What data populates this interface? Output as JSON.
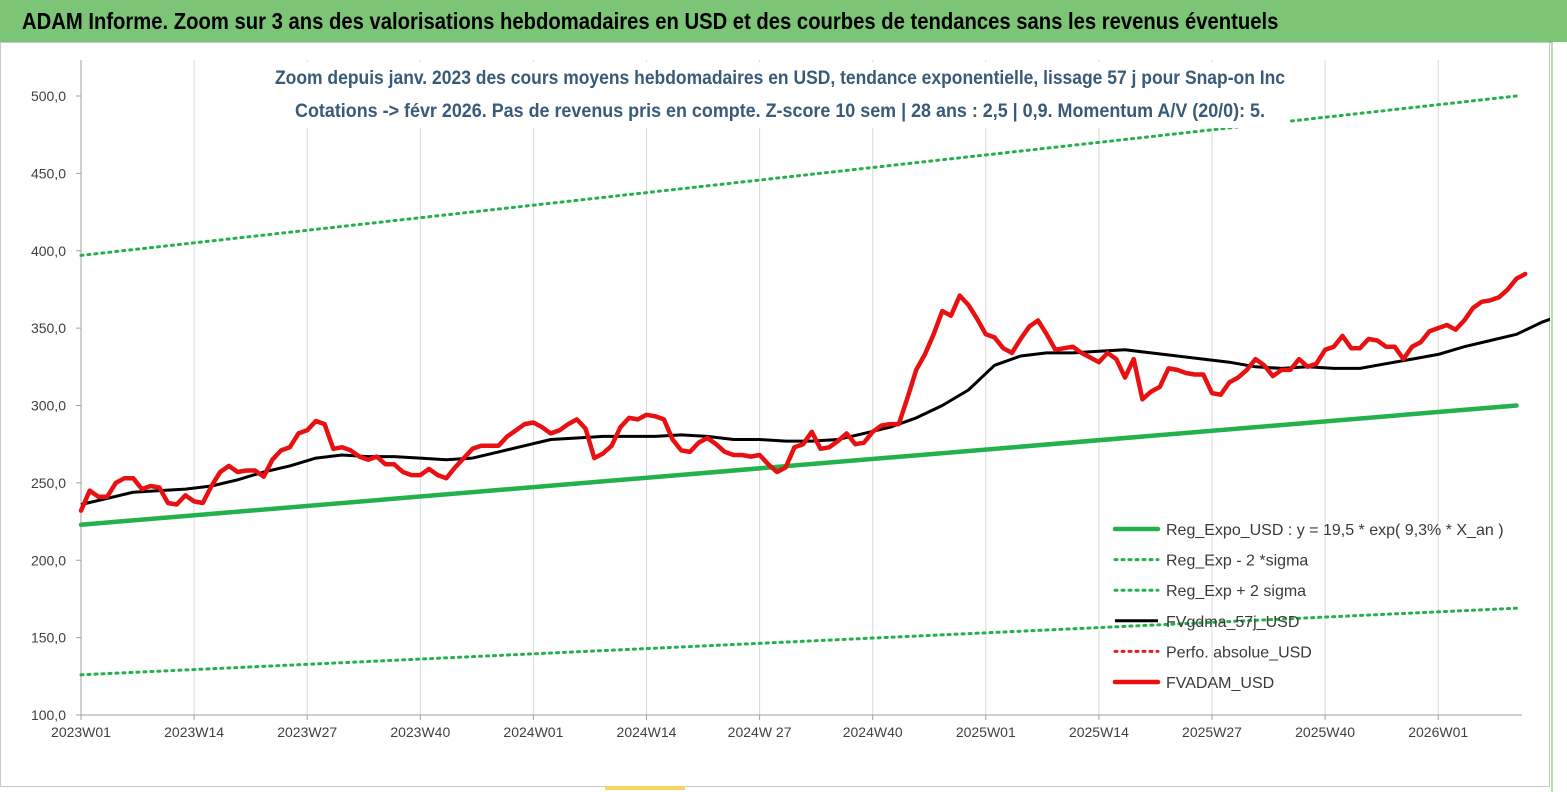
{
  "header": {
    "title": "ADAM Informe. Zoom sur 3 ans des valorisations hebdomadaires en USD et des courbes de tendances sans les revenus éventuels"
  },
  "colors": {
    "header_bg": "#7cc576",
    "reg_expo": "#22b14c",
    "sigma": "#22b14c",
    "fvgdma": "#000000",
    "perfo": "#e02020",
    "fvadam": "#e81010"
  },
  "chart_data": {
    "type": "line",
    "title_line1": "Zoom depuis janv. 2023 des cours moyens hebdomadaires en USD, tendance exponentielle, lissage 57 j pour Snap-on Inc",
    "title_line2": "Cotations -> févr 2026. Pas de revenus pris en compte. Z-score 10 sem | 28 ans : 2,5 | 0,9. Momentum A/V (20/0): 5.",
    "x_ticks": [
      "2023W01",
      "2023W14",
      "2023W27",
      "2023W40",
      "2024W01",
      "2024W14",
      "2024W 27",
      "2024W40",
      "2025W01",
      "2025W14",
      "2025W27",
      "2025W40",
      "2026W01"
    ],
    "y_ticks": [
      "100,0",
      "150,0",
      "200,0",
      "250,0",
      "300,0",
      "350,0",
      "400,0",
      "450,0",
      "500,0"
    ],
    "ylim": [
      100,
      500
    ],
    "x_range_weeks": [
      0,
      165
    ],
    "grid_vertical": true,
    "grid_horizontal": false,
    "legend_position": "right",
    "series": [
      {
        "name": "Reg_Expo_USD : y = 19,5 * exp( 9,3% *  X_an )",
        "style": "solid-thick",
        "color": "#22b14c",
        "points": [
          [
            0,
            223
          ],
          [
            165,
            300
          ]
        ]
      },
      {
        "name": "Reg_Exp - 2 *sigma",
        "style": "dotted",
        "color": "#22b14c",
        "points": [
          [
            0,
            126
          ],
          [
            165,
            169
          ]
        ]
      },
      {
        "name": "Reg_Exp + 2 sigma",
        "style": "dotted",
        "color": "#22b14c",
        "points": [
          [
            0,
            397
          ],
          [
            165,
            500
          ]
        ]
      },
      {
        "name": "FVgdma_57j_USD",
        "style": "solid",
        "color": "#000000",
        "points": [
          [
            0,
            236
          ],
          [
            3,
            240
          ],
          [
            6,
            244
          ],
          [
            9,
            245
          ],
          [
            12,
            246
          ],
          [
            15,
            248
          ],
          [
            18,
            252
          ],
          [
            21,
            257
          ],
          [
            24,
            261
          ],
          [
            27,
            266
          ],
          [
            30,
            268
          ],
          [
            33,
            267
          ],
          [
            36,
            267
          ],
          [
            39,
            266
          ],
          [
            42,
            265
          ],
          [
            45,
            266
          ],
          [
            48,
            270
          ],
          [
            51,
            274
          ],
          [
            54,
            278
          ],
          [
            57,
            279
          ],
          [
            60,
            280
          ],
          [
            63,
            280
          ],
          [
            66,
            280
          ],
          [
            69,
            281
          ],
          [
            72,
            280
          ],
          [
            75,
            278
          ],
          [
            78,
            278
          ],
          [
            81,
            277
          ],
          [
            84,
            277
          ],
          [
            87,
            278
          ],
          [
            90,
            282
          ],
          [
            93,
            286
          ],
          [
            96,
            292
          ],
          [
            99,
            300
          ],
          [
            102,
            310
          ],
          [
            105,
            326
          ],
          [
            108,
            332
          ],
          [
            111,
            334
          ],
          [
            114,
            334
          ],
          [
            117,
            335
          ],
          [
            120,
            336
          ],
          [
            123,
            334
          ],
          [
            126,
            332
          ],
          [
            129,
            330
          ],
          [
            132,
            328
          ],
          [
            135,
            325
          ],
          [
            138,
            324
          ],
          [
            141,
            325
          ],
          [
            144,
            324
          ],
          [
            147,
            324
          ],
          [
            150,
            327
          ],
          [
            153,
            330
          ],
          [
            156,
            333
          ],
          [
            159,
            338
          ],
          [
            162,
            342
          ],
          [
            165,
            346
          ],
          [
            168,
            354
          ],
          [
            171,
            360
          ],
          [
            174,
            367
          ],
          [
            177,
            373
          ]
        ]
      },
      {
        "name": "Perfo. absolue_USD",
        "style": "dotted",
        "color": "#e02020",
        "points": []
      },
      {
        "name": "FVADAM_USD",
        "style": "solid-thick",
        "color": "#e81010",
        "points": [
          [
            0,
            232
          ],
          [
            1,
            245
          ],
          [
            2,
            241
          ],
          [
            3,
            241
          ],
          [
            4,
            250
          ],
          [
            5,
            253
          ],
          [
            6,
            253
          ],
          [
            7,
            246
          ],
          [
            8,
            248
          ],
          [
            9,
            247
          ],
          [
            10,
            237
          ],
          [
            11,
            236
          ],
          [
            12,
            242
          ],
          [
            13,
            238
          ],
          [
            14,
            237
          ],
          [
            15,
            248
          ],
          [
            16,
            257
          ],
          [
            17,
            261
          ],
          [
            18,
            257
          ],
          [
            19,
            258
          ],
          [
            20,
            258
          ],
          [
            21,
            254
          ],
          [
            22,
            265
          ],
          [
            23,
            271
          ],
          [
            24,
            273
          ],
          [
            25,
            282
          ],
          [
            26,
            284
          ],
          [
            27,
            290
          ],
          [
            28,
            288
          ],
          [
            29,
            272
          ],
          [
            30,
            273
          ],
          [
            31,
            271
          ],
          [
            32,
            267
          ],
          [
            33,
            265
          ],
          [
            34,
            267
          ],
          [
            35,
            262
          ],
          [
            36,
            262
          ],
          [
            37,
            257
          ],
          [
            38,
            255
          ],
          [
            39,
            255
          ],
          [
            40,
            259
          ],
          [
            41,
            255
          ],
          [
            42,
            253
          ],
          [
            43,
            260
          ],
          [
            44,
            266
          ],
          [
            45,
            272
          ],
          [
            46,
            274
          ],
          [
            47,
            274
          ],
          [
            48,
            274
          ],
          [
            49,
            280
          ],
          [
            50,
            284
          ],
          [
            51,
            288
          ],
          [
            52,
            289
          ],
          [
            53,
            286
          ],
          [
            54,
            282
          ],
          [
            55,
            284
          ],
          [
            56,
            288
          ],
          [
            57,
            291
          ],
          [
            58,
            285
          ],
          [
            59,
            266
          ],
          [
            60,
            269
          ],
          [
            61,
            274
          ],
          [
            62,
            286
          ],
          [
            63,
            292
          ],
          [
            64,
            291
          ],
          [
            65,
            294
          ],
          [
            66,
            293
          ],
          [
            67,
            291
          ],
          [
            68,
            278
          ],
          [
            69,
            271
          ],
          [
            70,
            270
          ],
          [
            71,
            276
          ],
          [
            72,
            279
          ],
          [
            73,
            275
          ],
          [
            74,
            270
          ],
          [
            75,
            268
          ],
          [
            76,
            268
          ],
          [
            77,
            267
          ],
          [
            78,
            268
          ],
          [
            79,
            262
          ],
          [
            80,
            257
          ],
          [
            81,
            260
          ],
          [
            82,
            273
          ],
          [
            83,
            275
          ],
          [
            84,
            283
          ],
          [
            85,
            272
          ],
          [
            86,
            273
          ],
          [
            87,
            277
          ],
          [
            88,
            282
          ],
          [
            89,
            275
          ],
          [
            90,
            276
          ],
          [
            91,
            283
          ],
          [
            92,
            287
          ],
          [
            93,
            288
          ],
          [
            94,
            288
          ],
          [
            95,
            305
          ],
          [
            96,
            323
          ],
          [
            97,
            333
          ],
          [
            98,
            346
          ],
          [
            99,
            361
          ],
          [
            100,
            358
          ],
          [
            101,
            371
          ],
          [
            102,
            365
          ],
          [
            103,
            356
          ],
          [
            104,
            346
          ],
          [
            105,
            344
          ],
          [
            106,
            337
          ],
          [
            107,
            334
          ],
          [
            108,
            343
          ],
          [
            109,
            351
          ],
          [
            110,
            355
          ],
          [
            111,
            346
          ],
          [
            112,
            336
          ],
          [
            113,
            337
          ],
          [
            114,
            338
          ],
          [
            115,
            334
          ],
          [
            116,
            331
          ],
          [
            117,
            328
          ],
          [
            118,
            334
          ],
          [
            119,
            330
          ],
          [
            120,
            318
          ],
          [
            121,
            330
          ],
          [
            122,
            304
          ],
          [
            123,
            309
          ],
          [
            124,
            312
          ],
          [
            125,
            324
          ],
          [
            126,
            323
          ],
          [
            127,
            321
          ],
          [
            128,
            320
          ],
          [
            129,
            320
          ],
          [
            130,
            308
          ],
          [
            131,
            307
          ],
          [
            132,
            315
          ],
          [
            133,
            318
          ],
          [
            134,
            323
          ],
          [
            135,
            330
          ],
          [
            136,
            326
          ],
          [
            137,
            319
          ],
          [
            138,
            323
          ],
          [
            139,
            323
          ],
          [
            140,
            330
          ],
          [
            141,
            325
          ],
          [
            142,
            327
          ],
          [
            143,
            336
          ],
          [
            144,
            338
          ],
          [
            145,
            345
          ],
          [
            146,
            337
          ],
          [
            147,
            337
          ],
          [
            148,
            343
          ],
          [
            149,
            342
          ],
          [
            150,
            338
          ],
          [
            151,
            338
          ],
          [
            152,
            330
          ],
          [
            153,
            338
          ],
          [
            154,
            341
          ],
          [
            155,
            348
          ],
          [
            156,
            350
          ],
          [
            157,
            352
          ],
          [
            158,
            349
          ],
          [
            159,
            355
          ],
          [
            160,
            363
          ],
          [
            161,
            367
          ],
          [
            162,
            368
          ],
          [
            163,
            370
          ],
          [
            164,
            375
          ],
          [
            165,
            382
          ],
          [
            166,
            385
          ]
        ]
      }
    ]
  }
}
